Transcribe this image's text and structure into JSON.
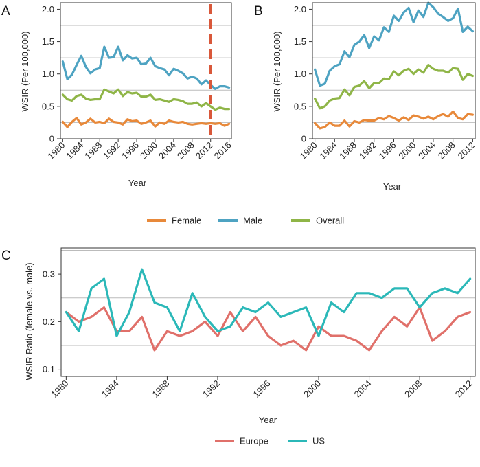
{
  "colors": {
    "female": "#e8893a",
    "male": "#4ea3c2",
    "overall": "#8fb547",
    "europe": "#e0706a",
    "us": "#2bb8b8",
    "marker": "#d9583a",
    "grid": "#bbbbbb",
    "axis": "#333333"
  },
  "chart_data": [
    {
      "panel": "A",
      "type": "line",
      "xlabel": "Year",
      "ylabel": "WSIR (Per 100,000)",
      "xlim": [
        1979.5,
        2016.5
      ],
      "ylim": [
        0,
        2.1
      ],
      "xticks": [
        1980,
        1984,
        1988,
        1992,
        1996,
        2000,
        2004,
        2008,
        2012,
        2016
      ],
      "xtick_labels": [
        "1980",
        "1984",
        "1988",
        "1992",
        "1996",
        "2000",
        "2004",
        "2008",
        "2012",
        "2016"
      ],
      "yticks": [
        0,
        0.5,
        1.0,
        1.5,
        2.0
      ],
      "ytick_labels": [
        "0",
        "0.5",
        "1.0",
        "1.5",
        "2.0"
      ],
      "gridlines_y": [
        0.25,
        0.75,
        1.25,
        1.75
      ],
      "vertical_marker_x": 2012,
      "x": [
        1980,
        1981,
        1982,
        1983,
        1984,
        1985,
        1986,
        1987,
        1988,
        1989,
        1990,
        1991,
        1992,
        1993,
        1994,
        1995,
        1996,
        1997,
        1998,
        1999,
        2000,
        2001,
        2002,
        2003,
        2004,
        2005,
        2006,
        2007,
        2008,
        2009,
        2010,
        2011,
        2012,
        2013,
        2014,
        2015,
        2016
      ],
      "series": [
        {
          "name": "Male",
          "color_key": "male",
          "values": [
            1.19,
            0.92,
            0.99,
            1.14,
            1.28,
            1.11,
            1.01,
            1.07,
            1.09,
            1.42,
            1.25,
            1.26,
            1.42,
            1.21,
            1.29,
            1.24,
            1.25,
            1.15,
            1.16,
            1.25,
            1.12,
            1.09,
            1.07,
            0.98,
            1.08,
            1.05,
            1.01,
            0.93,
            0.96,
            0.93,
            0.84,
            0.9,
            0.83,
            0.77,
            0.81,
            0.81,
            0.79
          ]
        },
        {
          "name": "Overall",
          "color_key": "overall",
          "values": [
            0.68,
            0.61,
            0.59,
            0.66,
            0.68,
            0.62,
            0.6,
            0.61,
            0.61,
            0.76,
            0.73,
            0.7,
            0.76,
            0.66,
            0.72,
            0.7,
            0.71,
            0.65,
            0.65,
            0.68,
            0.6,
            0.61,
            0.59,
            0.57,
            0.61,
            0.6,
            0.58,
            0.54,
            0.54,
            0.56,
            0.5,
            0.55,
            0.5,
            0.45,
            0.48,
            0.46,
            0.46
          ]
        },
        {
          "name": "Female",
          "color_key": "female",
          "values": [
            0.26,
            0.18,
            0.26,
            0.32,
            0.22,
            0.25,
            0.31,
            0.25,
            0.26,
            0.24,
            0.31,
            0.26,
            0.25,
            0.22,
            0.3,
            0.27,
            0.28,
            0.23,
            0.25,
            0.28,
            0.19,
            0.25,
            0.23,
            0.28,
            0.26,
            0.25,
            0.26,
            0.23,
            0.22,
            0.23,
            0.24,
            0.23,
            0.24,
            0.23,
            0.24,
            0.2,
            0.23
          ]
        }
      ]
    },
    {
      "panel": "B",
      "type": "line",
      "xlabel": "Year",
      "ylabel": "WSIR (Per 100,000)",
      "xlim": [
        1979.5,
        2012.5
      ],
      "ylim": [
        0,
        2.1
      ],
      "xticks": [
        1980,
        1984,
        1988,
        1992,
        1996,
        2000,
        2004,
        2008,
        2012
      ],
      "xtick_labels": [
        "1980",
        "1984",
        "1988",
        "1992",
        "1996",
        "2000",
        "2004",
        "2008",
        "2012"
      ],
      "yticks": [
        0,
        0.5,
        1.0,
        1.5,
        2.0
      ],
      "ytick_labels": [
        "0",
        "0.5",
        "1.0",
        "1.5",
        "2.0"
      ],
      "gridlines_y": [
        0.25,
        0.75,
        1.25,
        1.75
      ],
      "x": [
        1980,
        1981,
        1982,
        1983,
        1984,
        1985,
        1986,
        1987,
        1988,
        1989,
        1990,
        1991,
        1992,
        1993,
        1994,
        1995,
        1996,
        1997,
        1998,
        1999,
        2000,
        2001,
        2002,
        2003,
        2004,
        2005,
        2006,
        2007,
        2008,
        2009,
        2010,
        2011,
        2012
      ],
      "series": [
        {
          "name": "Male",
          "color_key": "male",
          "values": [
            1.07,
            0.82,
            0.85,
            1.05,
            1.12,
            1.15,
            1.35,
            1.26,
            1.45,
            1.5,
            1.6,
            1.4,
            1.58,
            1.52,
            1.72,
            1.65,
            1.9,
            1.82,
            1.95,
            2.02,
            1.8,
            1.98,
            1.88,
            2.1,
            2.03,
            1.93,
            1.88,
            1.82,
            1.86,
            2.01,
            1.65,
            1.73,
            1.66
          ]
        },
        {
          "name": "Overall",
          "color_key": "overall",
          "values": [
            0.62,
            0.47,
            0.5,
            0.59,
            0.62,
            0.63,
            0.76,
            0.67,
            0.8,
            0.82,
            0.89,
            0.78,
            0.86,
            0.86,
            0.93,
            0.92,
            1.04,
            0.98,
            1.05,
            1.08,
            1.0,
            1.07,
            1.02,
            1.14,
            1.08,
            1.05,
            1.05,
            1.02,
            1.09,
            1.08,
            0.91,
            1.0,
            0.97
          ]
        },
        {
          "name": "Female",
          "color_key": "female",
          "values": [
            0.24,
            0.16,
            0.18,
            0.25,
            0.2,
            0.2,
            0.28,
            0.19,
            0.27,
            0.25,
            0.29,
            0.28,
            0.28,
            0.32,
            0.3,
            0.35,
            0.32,
            0.28,
            0.33,
            0.29,
            0.36,
            0.34,
            0.31,
            0.34,
            0.3,
            0.35,
            0.38,
            0.34,
            0.42,
            0.32,
            0.3,
            0.38,
            0.37
          ]
        }
      ]
    },
    {
      "panel": "C",
      "type": "line",
      "xlabel": "Year",
      "ylabel": "WSIR Ratio (female vs. male)",
      "xlim": [
        1979.6,
        2012.4
      ],
      "ylim": [
        0.085,
        0.355
      ],
      "xticks": [
        1980,
        1984,
        1988,
        1992,
        1996,
        2000,
        2004,
        2008,
        2012
      ],
      "xtick_labels": [
        "1980",
        "1984",
        "1988",
        "1992",
        "1996",
        "2000",
        "2004",
        "2008",
        "2012"
      ],
      "yticks": [
        0.1,
        0.2,
        0.3
      ],
      "ytick_labels": [
        "0.1",
        "0.2",
        "0.3"
      ],
      "gridlines_y": [
        0.15,
        0.25,
        0.35
      ],
      "x": [
        1980,
        1981,
        1982,
        1983,
        1984,
        1985,
        1986,
        1987,
        1988,
        1989,
        1990,
        1991,
        1992,
        1993,
        1994,
        1995,
        1996,
        1997,
        1998,
        1999,
        2000,
        2001,
        2002,
        2003,
        2004,
        2005,
        2006,
        2007,
        2008,
        2009,
        2010,
        2011,
        2012
      ],
      "series": [
        {
          "name": "Europe",
          "color_key": "europe",
          "values": [
            0.22,
            0.2,
            0.21,
            0.23,
            0.18,
            0.18,
            0.21,
            0.14,
            0.18,
            0.17,
            0.18,
            0.2,
            0.17,
            0.22,
            0.18,
            0.21,
            0.17,
            0.15,
            0.16,
            0.14,
            0.19,
            0.17,
            0.17,
            0.16,
            0.14,
            0.18,
            0.21,
            0.19,
            0.23,
            0.16,
            0.18,
            0.21,
            0.22
          ]
        },
        {
          "name": "US",
          "color_key": "us",
          "values": [
            0.22,
            0.18,
            0.27,
            0.29,
            0.17,
            0.22,
            0.31,
            0.24,
            0.23,
            0.18,
            0.26,
            0.21,
            0.18,
            0.19,
            0.23,
            0.22,
            0.24,
            0.21,
            0.22,
            0.23,
            0.17,
            0.24,
            0.22,
            0.26,
            0.26,
            0.25,
            0.27,
            0.27,
            0.23,
            0.26,
            0.27,
            0.26,
            0.29
          ]
        }
      ]
    }
  ],
  "legend_top": [
    {
      "label": "Female",
      "color_key": "female"
    },
    {
      "label": "Male",
      "color_key": "male"
    },
    {
      "label": "Overall",
      "color_key": "overall"
    }
  ],
  "legend_bottom": [
    {
      "label": "Europe",
      "color_key": "europe"
    },
    {
      "label": "US",
      "color_key": "us"
    }
  ]
}
